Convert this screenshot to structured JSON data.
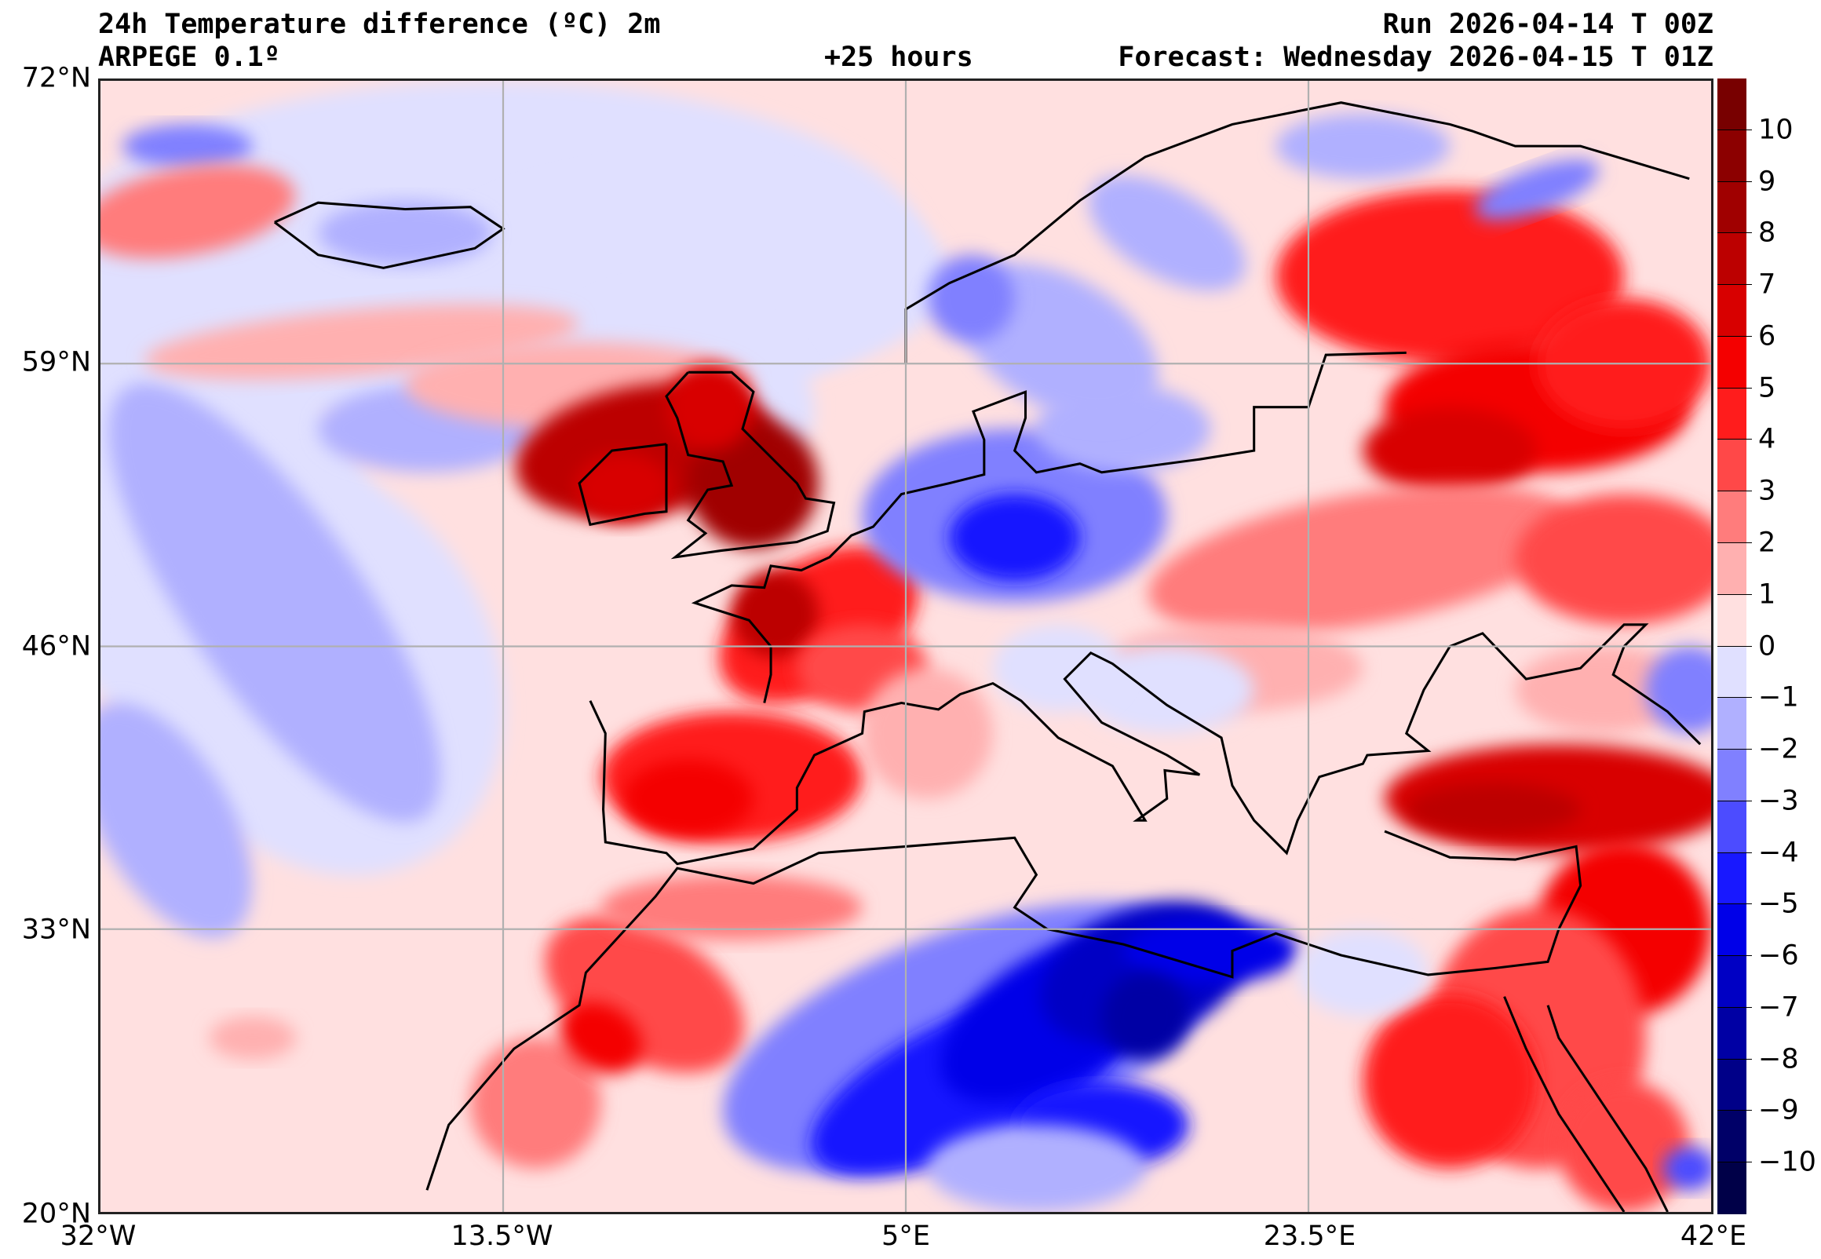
{
  "header": {
    "title": "24h Temperature difference (ºC) 2m",
    "model": "ARPEGE 0.1º",
    "lead": "+25 hours",
    "run": "Run 2026-04-14 T 00Z",
    "forecast": "Forecast: Wednesday 2026-04-15 T 01Z"
  },
  "chart_data": {
    "type": "heatmap",
    "title": "24h Temperature difference (ºC) 2m",
    "units": "ºC",
    "xlim": [
      -32,
      42
    ],
    "ylim": [
      20,
      72
    ],
    "grid": true,
    "x_ticks": [
      -32,
      -13.5,
      5,
      23.5,
      42
    ],
    "x_tick_labels": [
      "32°W",
      "13.5°W",
      "5°E",
      "23.5°E",
      "42°E"
    ],
    "y_ticks": [
      20,
      33,
      46,
      59,
      72
    ],
    "y_tick_labels": [
      "20°N",
      "33°N",
      "46°N",
      "59°N",
      "72°N"
    ],
    "colorbar": {
      "placement": "right",
      "ticks": [
        10,
        9,
        8,
        7,
        6,
        5,
        4,
        3,
        2,
        1,
        0,
        -1,
        -2,
        -3,
        -4,
        -5,
        -6,
        -7,
        -8,
        -9,
        -10
      ],
      "tick_labels": [
        "10",
        "9",
        "8",
        "7",
        "6",
        "5",
        "4",
        "3",
        "2",
        "1",
        "0",
        "−1",
        "−2",
        "−3",
        "−4",
        "−5",
        "−6",
        "−7",
        "−8",
        "−9",
        "−10"
      ],
      "colors_top_to_bottom": [
        "#780000",
        "#8c0000",
        "#a00000",
        "#bc0000",
        "#d80000",
        "#f40000",
        "#ff1c1c",
        "#ff4848",
        "#ff7c7c",
        "#ffb0b0",
        "#ffe0e0",
        "#e0e0ff",
        "#b0b0ff",
        "#8080ff",
        "#4c4cff",
        "#1818ff",
        "#0000e8",
        "#0000c4",
        "#0000a4",
        "#000088",
        "#000068",
        "#000048"
      ]
    }
  }
}
